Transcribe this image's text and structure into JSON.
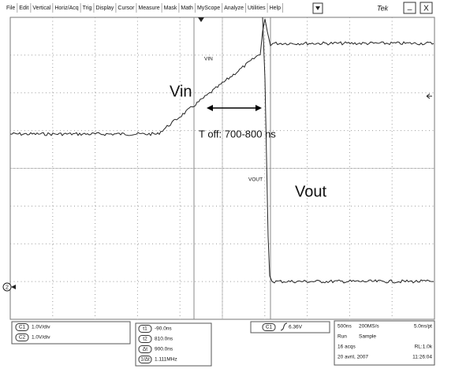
{
  "menu": [
    "File",
    "Edit",
    "Vertical",
    "Horiz/Acq",
    "Trig",
    "Display",
    "Cursor",
    "Measure",
    "Mask",
    "Math",
    "MyScope",
    "Analyze",
    "Utilities",
    "Help"
  ],
  "window": {
    "brand": "Tek",
    "minimize": "_",
    "close": "X"
  },
  "screen": {
    "vin_tag": "VIN",
    "vin": "Vin",
    "toff": "T off: 700-800 ns",
    "vout_tag": "VOUT",
    "vout": "Vout",
    "ground_marker": "2"
  },
  "readouts": {
    "channels": [
      [
        "C1",
        "1.0V/div"
      ],
      [
        "C2",
        "1.0V/div"
      ]
    ],
    "cursors": [
      [
        "t1",
        "-90.0ns"
      ],
      [
        "t2",
        "810.0ns"
      ],
      [
        "Δt",
        "900.0ns"
      ],
      [
        "1/Δt",
        "1.111MHz"
      ]
    ],
    "trigger": {
      "source": "C1",
      "level": "6.36V"
    },
    "acquisition": [
      [
        "500ns",
        "200MS/s",
        "5.0ns/pt"
      ],
      [
        "Run",
        "Sample"
      ],
      [
        "16 acqs",
        "RL:1.0k"
      ],
      [
        "20 avril, 2007",
        "11:26:04"
      ]
    ]
  }
}
